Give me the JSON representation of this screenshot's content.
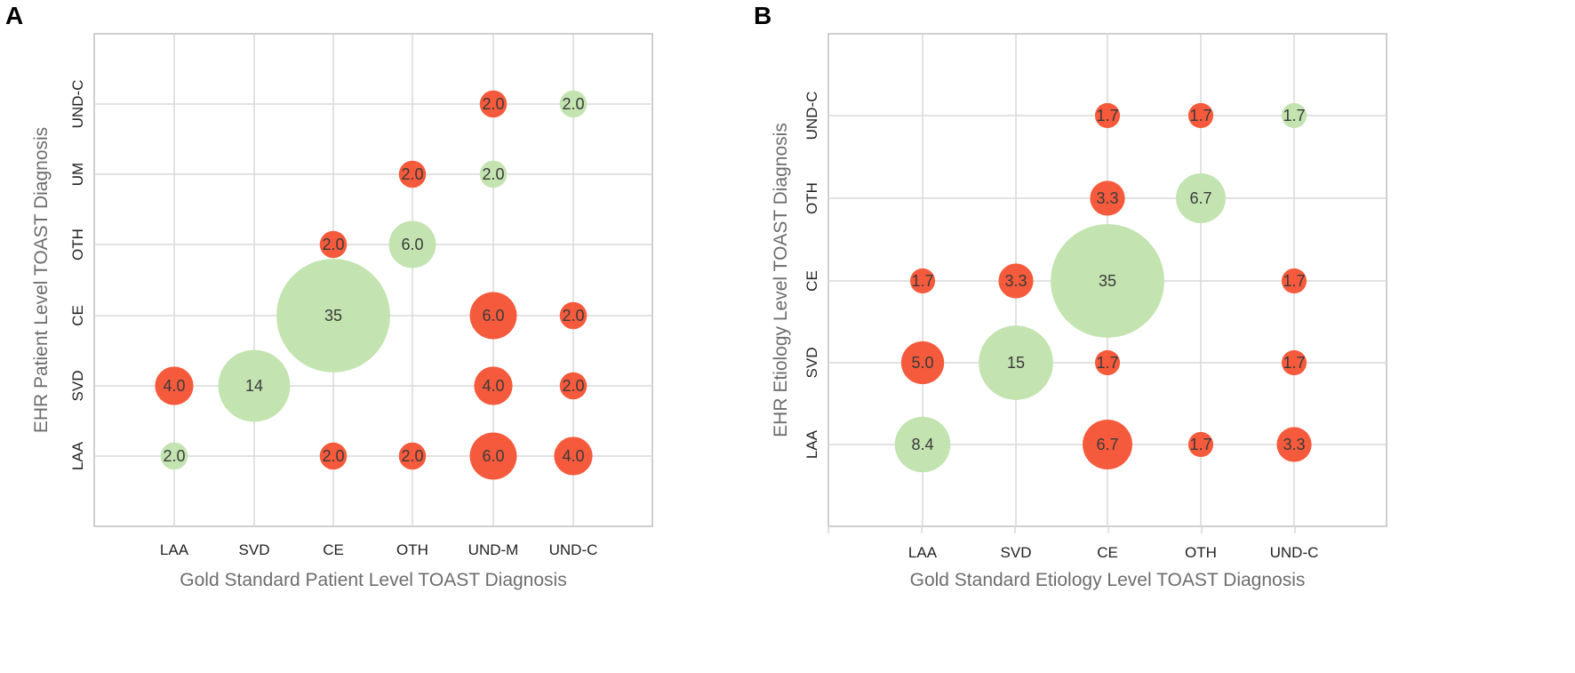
{
  "colors": {
    "agree": "#c3e3b0",
    "disagree": "#f55a3c"
  },
  "chart_data": [
    {
      "panel": "A",
      "type": "bubble",
      "xlabel": "Gold Standard Patient Level TOAST Diagnosis",
      "ylabel": "EHR Patient Level TOAST Diagnosis",
      "x_categories": [
        "LAA",
        "SVD",
        "CE",
        "OTH",
        "UND-M",
        "UND-C"
      ],
      "y_categories": [
        "LAA",
        "SVD",
        "CE",
        "OTH",
        "UM",
        "UND-C"
      ],
      "points": [
        {
          "x": "LAA",
          "y": "LAA",
          "value": 2.0,
          "label": "2.0",
          "agree": true
        },
        {
          "x": "LAA",
          "y": "SVD",
          "value": 4.0,
          "label": "4.0",
          "agree": false
        },
        {
          "x": "SVD",
          "y": "SVD",
          "value": 14,
          "label": "14",
          "agree": true
        },
        {
          "x": "CE",
          "y": "LAA",
          "value": 2.0,
          "label": "2.0",
          "agree": false
        },
        {
          "x": "CE",
          "y": "CE",
          "value": 35,
          "label": "35",
          "agree": true
        },
        {
          "x": "CE",
          "y": "OTH",
          "value": 2.0,
          "label": "2.0",
          "agree": false
        },
        {
          "x": "OTH",
          "y": "LAA",
          "value": 2.0,
          "label": "2.0",
          "agree": false
        },
        {
          "x": "OTH",
          "y": "OTH",
          "value": 6.0,
          "label": "6.0",
          "agree": true
        },
        {
          "x": "OTH",
          "y": "UM",
          "value": 2.0,
          "label": "2.0",
          "agree": false
        },
        {
          "x": "UND-M",
          "y": "LAA",
          "value": 6.0,
          "label": "6.0",
          "agree": false
        },
        {
          "x": "UND-M",
          "y": "SVD",
          "value": 4.0,
          "label": "4.0",
          "agree": false
        },
        {
          "x": "UND-M",
          "y": "CE",
          "value": 6.0,
          "label": "6.0",
          "agree": false
        },
        {
          "x": "UND-M",
          "y": "UM",
          "value": 2.0,
          "label": "2.0",
          "agree": true
        },
        {
          "x": "UND-M",
          "y": "UND-C",
          "value": 2.0,
          "label": "2.0",
          "agree": false
        },
        {
          "x": "UND-C",
          "y": "LAA",
          "value": 4.0,
          "label": "4.0",
          "agree": false
        },
        {
          "x": "UND-C",
          "y": "SVD",
          "value": 2.0,
          "label": "2.0",
          "agree": false
        },
        {
          "x": "UND-C",
          "y": "CE",
          "value": 2.0,
          "label": "2.0",
          "agree": false
        },
        {
          "x": "UND-C",
          "y": "UND-C",
          "value": 2.0,
          "label": "2.0",
          "agree": true
        }
      ]
    },
    {
      "panel": "B",
      "type": "bubble",
      "xlabel": "Gold Standard Etiology Level TOAST Diagnosis",
      "ylabel": "EHR Etiology Level TOAST Diagnosis",
      "x_categories": [
        "LAA",
        "SVD",
        "CE",
        "OTH",
        "UND-C"
      ],
      "y_categories": [
        "LAA",
        "SVD",
        "CE",
        "OTH",
        "UND-C"
      ],
      "points": [
        {
          "x": "LAA",
          "y": "LAA",
          "value": 8.4,
          "label": "8.4",
          "agree": true
        },
        {
          "x": "LAA",
          "y": "SVD",
          "value": 5.0,
          "label": "5.0",
          "agree": false
        },
        {
          "x": "LAA",
          "y": "CE",
          "value": 1.7,
          "label": "1.7",
          "agree": false
        },
        {
          "x": "SVD",
          "y": "SVD",
          "value": 15,
          "label": "15",
          "agree": true
        },
        {
          "x": "SVD",
          "y": "CE",
          "value": 3.3,
          "label": "3.3",
          "agree": false
        },
        {
          "x": "CE",
          "y": "LAA",
          "value": 6.7,
          "label": "6.7",
          "agree": false
        },
        {
          "x": "CE",
          "y": "SVD",
          "value": 1.7,
          "label": "1.7",
          "agree": false
        },
        {
          "x": "CE",
          "y": "CE",
          "value": 35,
          "label": "35",
          "agree": true
        },
        {
          "x": "CE",
          "y": "OTH",
          "value": 3.3,
          "label": "3.3",
          "agree": false
        },
        {
          "x": "CE",
          "y": "UND-C",
          "value": 1.7,
          "label": "1.7",
          "agree": false
        },
        {
          "x": "OTH",
          "y": "LAA",
          "value": 1.7,
          "label": "1.7",
          "agree": false
        },
        {
          "x": "OTH",
          "y": "OTH",
          "value": 6.7,
          "label": "6.7",
          "agree": true
        },
        {
          "x": "OTH",
          "y": "UND-C",
          "value": 1.7,
          "label": "1.7",
          "agree": false
        },
        {
          "x": "UND-C",
          "y": "LAA",
          "value": 3.3,
          "label": "3.3",
          "agree": false
        },
        {
          "x": "UND-C",
          "y": "SVD",
          "value": 1.7,
          "label": "1.7",
          "agree": false
        },
        {
          "x": "UND-C",
          "y": "CE",
          "value": 1.7,
          "label": "1.7",
          "agree": false
        },
        {
          "x": "UND-C",
          "y": "UND-C",
          "value": 1.7,
          "label": "1.7",
          "agree": true
        }
      ]
    }
  ]
}
